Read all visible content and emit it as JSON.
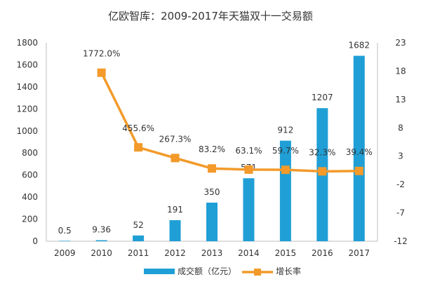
{
  "chart_data": {
    "type": "bar",
    "title": "亿欧智库：2009-2017年天猫双十一交易额",
    "categories": [
      "2009",
      "2010",
      "2011",
      "2012",
      "2013",
      "2014",
      "2015",
      "2016",
      "2017"
    ],
    "series": [
      {
        "name": "成交额（亿元）",
        "type": "bar",
        "axis": "left",
        "color": "#1f9fd6",
        "values": [
          0.5,
          9.36,
          52,
          191,
          350,
          571,
          912,
          1207,
          1682
        ],
        "labels": [
          "0.5",
          "9.36",
          "52",
          "191",
          "350",
          "571",
          "912",
          "1207",
          "1682"
        ]
      },
      {
        "name": "增长率",
        "type": "line",
        "axis": "right",
        "color": "#f39a2a",
        "values": [
          null,
          17.72,
          4.556,
          2.673,
          0.832,
          0.631,
          0.597,
          0.323,
          0.394
        ],
        "labels": [
          "",
          "1772.0%",
          "455.6%",
          "267.3%",
          "83.2%",
          "63.1%",
          "59.7%",
          "32.3%",
          "39.4%"
        ]
      }
    ],
    "y_left": {
      "min": 0,
      "max": 1800,
      "ticks": [
        "0",
        "200",
        "400",
        "600",
        "800",
        "1000",
        "1200",
        "1400",
        "1600",
        "1800"
      ]
    },
    "y_right": {
      "min": -12,
      "max": 23,
      "ticks": [
        "-12",
        "-7",
        "-2",
        "3",
        "8",
        "13",
        "18",
        "23"
      ]
    },
    "grid": false,
    "legend_position": "bottom"
  }
}
